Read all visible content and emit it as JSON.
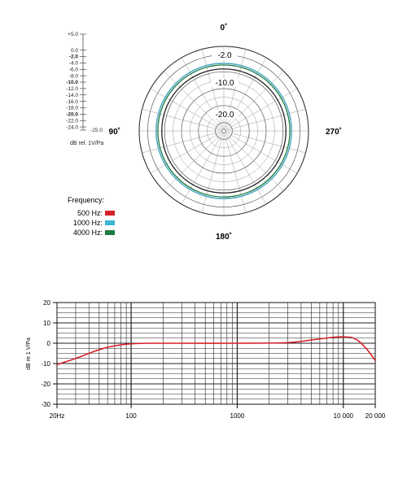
{
  "chart_data": [
    {
      "type": "polar",
      "angle_labels": [
        "0˚",
        "90˚",
        "180˚",
        "270˚"
      ],
      "ring_labels": [
        "-2.0",
        "-10.0",
        "-20.0"
      ],
      "scale_ticks": [
        "+5.0",
        "0.0",
        "-2.0",
        "-4.0",
        "-6.0",
        "-8.0",
        "-10.0",
        "-12.0",
        "-14.0",
        "-16.0",
        "-18.0",
        "-20.0",
        "-22.0",
        "-24.0"
      ],
      "scale_end_label": "-25.0",
      "scale_unit": "dB rel. 1V/Pa",
      "legend_title": "Frequency:",
      "rlim": [
        -25,
        5
      ],
      "series": [
        {
          "name": "500 Hz:",
          "color": "#d62027",
          "level_db": -1.0
        },
        {
          "name": "1000 Hz:",
          "color": "#3ab7d4",
          "level_db": -1.0
        },
        {
          "name": "4000 Hz:",
          "color": "#1d7a43",
          "level_db": -1.6
        }
      ],
      "inner_pattern_db": -3.0
    },
    {
      "type": "line",
      "xscale": "log",
      "xlim": [
        20,
        20000
      ],
      "ylim": [
        -30,
        20
      ],
      "xtick_labels": [
        {
          "value": 20,
          "label": "20Hz"
        },
        {
          "value": 100,
          "label": "100"
        },
        {
          "value": 1000,
          "label": "1000"
        },
        {
          "value": 10000,
          "label": "10 000"
        },
        {
          "value": 20000,
          "label": "20 000"
        }
      ],
      "ytick_labels": [
        "20",
        "10",
        "0",
        "-10",
        "-20",
        "-30"
      ],
      "ylabel": "dB re 1 V/Pa",
      "grid": true,
      "series": [
        {
          "color": "#d62027",
          "x": [
            20,
            30,
            45,
            60,
            80,
            100,
            150,
            300,
            1000,
            3000,
            5000,
            8000,
            10000,
            12000,
            14000,
            17000,
            20000
          ],
          "y": [
            -10.5,
            -7.5,
            -4.0,
            -2.0,
            -0.8,
            -0.3,
            0.0,
            0.0,
            0.0,
            0.3,
            1.6,
            2.9,
            3.1,
            2.8,
            1.0,
            -3.5,
            -8.5
          ]
        }
      ]
    }
  ]
}
